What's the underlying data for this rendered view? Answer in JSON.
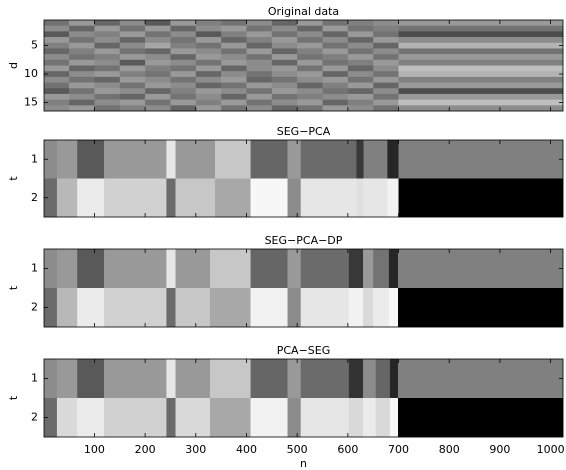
{
  "chart_data": [
    {
      "type": "heatmap",
      "title": "Original data",
      "ylabel": "d",
      "colormap": "gray",
      "clim": [
        0,
        1
      ],
      "xlim": [
        0.5,
        1024.5
      ],
      "xticks": [
        100,
        200,
        300,
        400,
        500,
        600,
        700,
        800,
        900,
        1000
      ],
      "xticklabels": false,
      "ylim": [
        0.5,
        16.5
      ],
      "yticks": [
        5,
        10,
        15
      ],
      "reversed": true,
      "x_edges": [
        0.5,
        50,
        100,
        150,
        200,
        250,
        300,
        350,
        400,
        450,
        500,
        550,
        600,
        650,
        700,
        1024.5
      ],
      "values": [
        [
          0.45,
          0.6,
          0.4,
          0.55,
          0.35,
          0.6,
          0.5,
          0.45,
          0.55,
          0.4,
          0.6,
          0.45,
          0.5,
          0.55,
          0.6
        ],
        [
          0.55,
          0.4,
          0.6,
          0.45,
          0.6,
          0.4,
          0.55,
          0.6,
          0.45,
          0.55,
          0.4,
          0.6,
          0.45,
          0.5,
          0.45
        ],
        [
          0.35,
          0.55,
          0.5,
          0.6,
          0.45,
          0.55,
          0.35,
          0.5,
          0.6,
          0.45,
          0.55,
          0.4,
          0.6,
          0.45,
          0.3
        ],
        [
          0.6,
          0.45,
          0.55,
          0.4,
          0.55,
          0.45,
          0.6,
          0.4,
          0.5,
          0.6,
          0.45,
          0.55,
          0.4,
          0.6,
          0.55
        ],
        [
          0.5,
          0.6,
          0.4,
          0.55,
          0.65,
          0.5,
          0.45,
          0.6,
          0.4,
          0.55,
          0.6,
          0.45,
          0.55,
          0.4,
          0.7
        ],
        [
          0.4,
          0.5,
          0.6,
          0.45,
          0.4,
          0.6,
          0.55,
          0.45,
          0.6,
          0.4,
          0.5,
          0.6,
          0.45,
          0.55,
          0.45
        ],
        [
          0.55,
          0.45,
          0.5,
          0.6,
          0.55,
          0.4,
          0.6,
          0.55,
          0.45,
          0.6,
          0.45,
          0.5,
          0.6,
          0.45,
          0.6
        ],
        [
          0.45,
          0.6,
          0.55,
          0.35,
          0.6,
          0.55,
          0.45,
          0.6,
          0.55,
          0.4,
          0.6,
          0.45,
          0.5,
          0.6,
          0.5
        ],
        [
          0.6,
          0.4,
          0.45,
          0.6,
          0.5,
          0.45,
          0.6,
          0.4,
          0.55,
          0.6,
          0.45,
          0.6,
          0.4,
          0.55,
          0.75
        ],
        [
          0.4,
          0.55,
          0.6,
          0.5,
          0.45,
          0.6,
          0.4,
          0.55,
          0.45,
          0.55,
          0.6,
          0.4,
          0.55,
          0.45,
          0.7
        ],
        [
          0.55,
          0.45,
          0.4,
          0.6,
          0.55,
          0.45,
          0.55,
          0.6,
          0.4,
          0.45,
          0.55,
          0.6,
          0.45,
          0.6,
          0.5
        ],
        [
          0.45,
          0.6,
          0.55,
          0.45,
          0.6,
          0.55,
          0.4,
          0.45,
          0.6,
          0.55,
          0.4,
          0.5,
          0.6,
          0.4,
          0.6
        ],
        [
          0.35,
          0.45,
          0.6,
          0.55,
          0.4,
          0.5,
          0.6,
          0.55,
          0.45,
          0.6,
          0.55,
          0.45,
          0.4,
          0.55,
          0.3
        ],
        [
          0.6,
          0.55,
          0.45,
          0.4,
          0.6,
          0.45,
          0.55,
          0.4,
          0.6,
          0.45,
          0.5,
          0.55,
          0.6,
          0.45,
          0.6
        ],
        [
          0.5,
          0.4,
          0.55,
          0.6,
          0.45,
          0.6,
          0.5,
          0.6,
          0.45,
          0.55,
          0.6,
          0.4,
          0.5,
          0.6,
          0.75
        ],
        [
          0.55,
          0.6,
          0.45,
          0.5,
          0.55,
          0.4,
          0.6,
          0.45,
          0.55,
          0.4,
          0.45,
          0.6,
          0.55,
          0.45,
          0.55
        ]
      ]
    },
    {
      "type": "heatmap",
      "title": "SEG−PCA",
      "ylabel": "t",
      "colormap": "gray",
      "clim": [
        0,
        1
      ],
      "xlim": [
        0.5,
        1024.5
      ],
      "xticks": [
        100,
        200,
        300,
        400,
        500,
        600,
        700,
        800,
        900,
        1000
      ],
      "xticklabels": false,
      "ylim": [
        0.5,
        2.5
      ],
      "yticks": [
        1,
        2
      ],
      "reversed": true,
      "x_edges": [
        0.5,
        26,
        66,
        119,
        242,
        260,
        338,
        408,
        481,
        507,
        617,
        631,
        678,
        700,
        1024.5
      ],
      "values": [
        [
          0.55,
          0.6,
          0.35,
          0.6,
          0.9,
          0.6,
          0.78,
          0.4,
          0.6,
          0.42,
          0.22,
          0.5,
          0.15,
          0.5
        ],
        [
          0.42,
          0.72,
          0.92,
          0.82,
          0.42,
          0.78,
          0.66,
          0.97,
          0.55,
          0.9,
          0.88,
          0.9,
          0.95,
          0
        ]
      ]
    },
    {
      "type": "heatmap",
      "title": "SEG−PCA−DP",
      "ylabel": "t",
      "colormap": "gray",
      "clim": [
        0,
        1
      ],
      "xlim": [
        0.5,
        1024.5
      ],
      "xticks": [
        100,
        200,
        300,
        400,
        500,
        600,
        700,
        800,
        900,
        1000
      ],
      "xticklabels": false,
      "ylim": [
        0.5,
        2.5
      ],
      "yticks": [
        1,
        2
      ],
      "reversed": true,
      "x_edges": [
        0.5,
        26,
        66,
        119,
        242,
        260,
        328,
        408,
        481,
        507,
        602,
        630,
        650,
        681,
        699,
        1024.5
      ],
      "values": [
        [
          0.55,
          0.6,
          0.35,
          0.6,
          0.9,
          0.6,
          0.78,
          0.4,
          0.6,
          0.42,
          0.22,
          0.6,
          0.45,
          0.15,
          0.5
        ],
        [
          0.42,
          0.72,
          0.92,
          0.82,
          0.42,
          0.78,
          0.66,
          0.95,
          0.55,
          0.9,
          0.95,
          0.85,
          0.92,
          0.97,
          0
        ]
      ]
    },
    {
      "type": "heatmap",
      "title": "PCA−SEG",
      "ylabel": "t",
      "xlabel": "n",
      "colormap": "gray",
      "clim": [
        0,
        1
      ],
      "xlim": [
        0.5,
        1024.5
      ],
      "xticks": [
        100,
        200,
        300,
        400,
        500,
        600,
        700,
        800,
        900,
        1000
      ],
      "xticklabels": true,
      "ylim": [
        0.5,
        2.5
      ],
      "yticks": [
        1,
        2
      ],
      "reversed": true,
      "x_edges": [
        0.5,
        26,
        66,
        119,
        242,
        260,
        328,
        408,
        481,
        507,
        602,
        630,
        655,
        683,
        699,
        1024.5
      ],
      "values": [
        [
          0.55,
          0.6,
          0.35,
          0.6,
          0.9,
          0.6,
          0.78,
          0.4,
          0.6,
          0.42,
          0.2,
          0.55,
          0.4,
          0.15,
          0.5
        ],
        [
          0.42,
          0.85,
          0.92,
          0.82,
          0.42,
          0.85,
          0.66,
          0.95,
          0.55,
          0.9,
          0.85,
          0.92,
          0.85,
          0.97,
          0
        ]
      ]
    }
  ]
}
